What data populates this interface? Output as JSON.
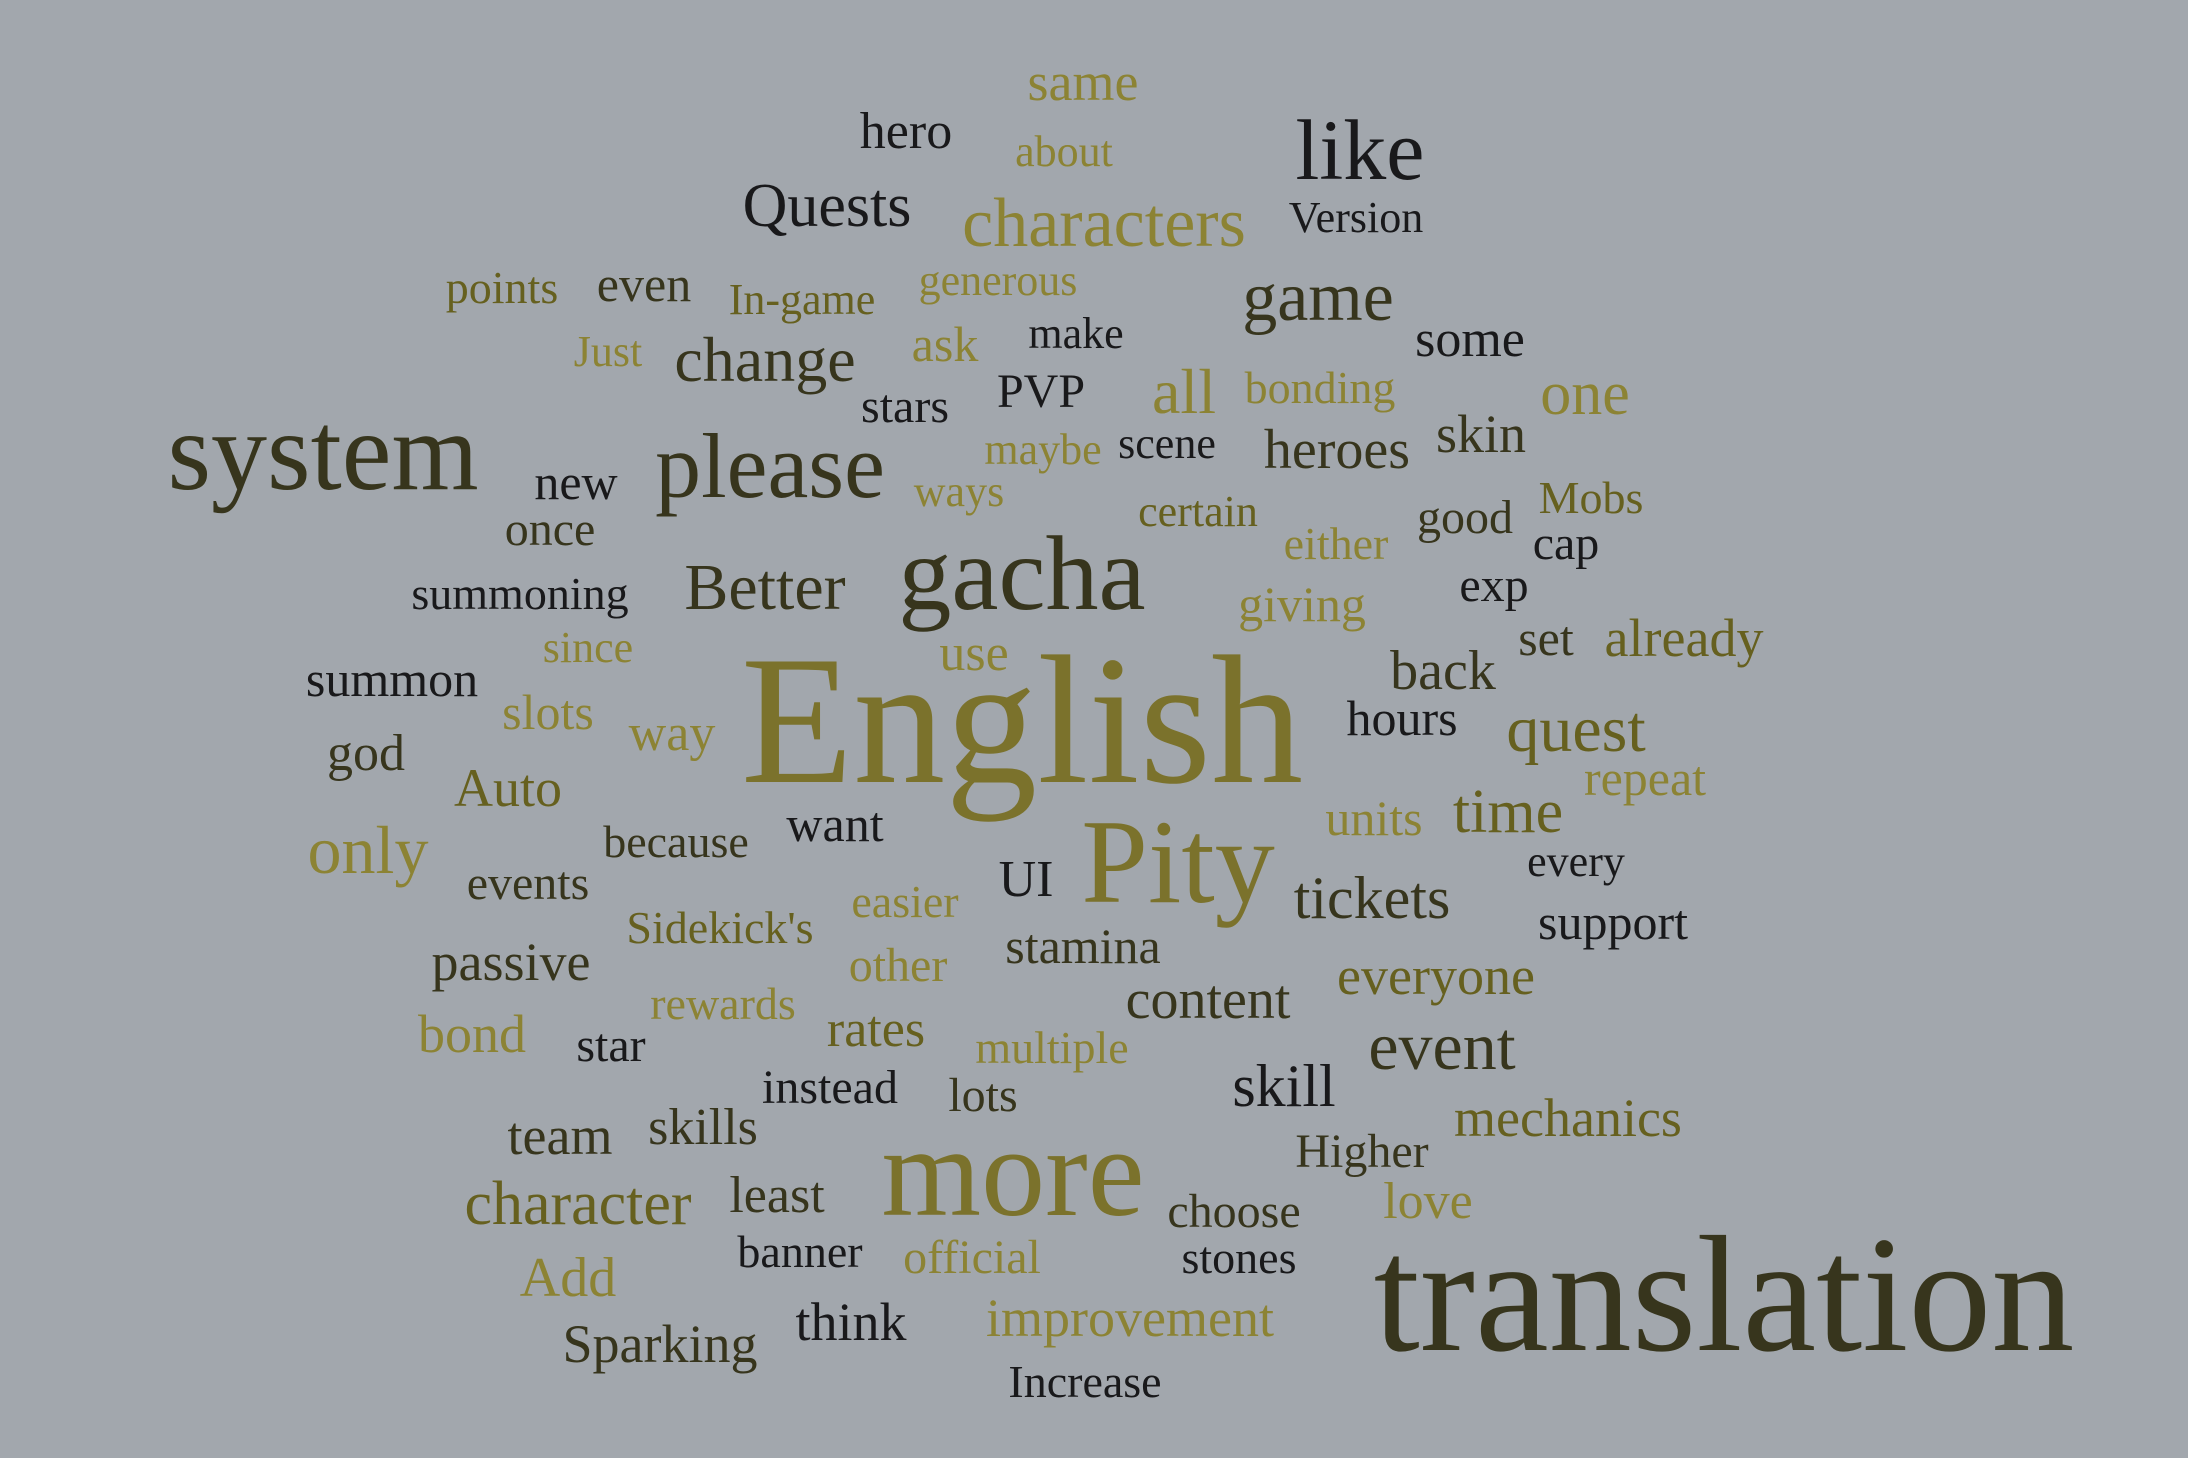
{
  "words": [
    {
      "text": "same",
      "color": "l"
    },
    {
      "text": "hero",
      "color": "k"
    },
    {
      "text": "about",
      "color": "l"
    },
    {
      "text": "like",
      "color": "k"
    },
    {
      "text": "Quests",
      "color": "k"
    },
    {
      "text": "characters",
      "color": "l"
    },
    {
      "text": "Version",
      "color": "k"
    },
    {
      "text": "points",
      "color": "m"
    },
    {
      "text": "even",
      "color": "d"
    },
    {
      "text": "In-game",
      "color": "m"
    },
    {
      "text": "generous",
      "color": "l"
    },
    {
      "text": "game",
      "color": "d"
    },
    {
      "text": "Just",
      "color": "l"
    },
    {
      "text": "change",
      "color": "d"
    },
    {
      "text": "ask",
      "color": "l"
    },
    {
      "text": "make",
      "color": "k"
    },
    {
      "text": "some",
      "color": "k"
    },
    {
      "text": "stars",
      "color": "k"
    },
    {
      "text": "PVP",
      "color": "k"
    },
    {
      "text": "all",
      "color": "l"
    },
    {
      "text": "bonding",
      "color": "l"
    },
    {
      "text": "one",
      "color": "l"
    },
    {
      "text": "system",
      "color": "d"
    },
    {
      "text": "please",
      "color": "d"
    },
    {
      "text": "new",
      "color": "k"
    },
    {
      "text": "maybe",
      "color": "l"
    },
    {
      "text": "scene",
      "color": "k"
    },
    {
      "text": "heroes",
      "color": "d"
    },
    {
      "text": "skin",
      "color": "d"
    },
    {
      "text": "ways",
      "color": "l"
    },
    {
      "text": "once",
      "color": "d"
    },
    {
      "text": "certain",
      "color": "m"
    },
    {
      "text": "Mobs",
      "color": "m"
    },
    {
      "text": "good",
      "color": "d"
    },
    {
      "text": "either",
      "color": "l"
    },
    {
      "text": "cap",
      "color": "k"
    },
    {
      "text": "summoning",
      "color": "k"
    },
    {
      "text": "Better",
      "color": "d"
    },
    {
      "text": "gacha",
      "color": "d"
    },
    {
      "text": "giving",
      "color": "l"
    },
    {
      "text": "exp",
      "color": "k"
    },
    {
      "text": "since",
      "color": "l"
    },
    {
      "text": "use",
      "color": "l"
    },
    {
      "text": "set",
      "color": "d"
    },
    {
      "text": "already",
      "color": "m"
    },
    {
      "text": "summon",
      "color": "k"
    },
    {
      "text": "back",
      "color": "d"
    },
    {
      "text": "slots",
      "color": "l"
    },
    {
      "text": "English",
      "color": "o"
    },
    {
      "text": "hours",
      "color": "k"
    },
    {
      "text": "quest",
      "color": "m"
    },
    {
      "text": "god",
      "color": "d"
    },
    {
      "text": "way",
      "color": "l"
    },
    {
      "text": "repeat",
      "color": "l"
    },
    {
      "text": "Auto",
      "color": "m"
    },
    {
      "text": "units",
      "color": "l"
    },
    {
      "text": "time",
      "color": "m"
    },
    {
      "text": "only",
      "color": "l"
    },
    {
      "text": "because",
      "color": "d"
    },
    {
      "text": "want",
      "color": "k"
    },
    {
      "text": "Pity",
      "color": "o"
    },
    {
      "text": "every",
      "color": "k"
    },
    {
      "text": "events",
      "color": "d"
    },
    {
      "text": "UI",
      "color": "k"
    },
    {
      "text": "easier",
      "color": "l"
    },
    {
      "text": "tickets",
      "color": "d"
    },
    {
      "text": "Sidekick's",
      "color": "m"
    },
    {
      "text": "support",
      "color": "k"
    },
    {
      "text": "passive",
      "color": "d"
    },
    {
      "text": "other",
      "color": "l"
    },
    {
      "text": "stamina",
      "color": "d"
    },
    {
      "text": "everyone",
      "color": "m"
    },
    {
      "text": "rewards",
      "color": "l"
    },
    {
      "text": "content",
      "color": "d"
    },
    {
      "text": "bond",
      "color": "l"
    },
    {
      "text": "rates",
      "color": "m"
    },
    {
      "text": "star",
      "color": "k"
    },
    {
      "text": "multiple",
      "color": "l"
    },
    {
      "text": "event",
      "color": "d"
    },
    {
      "text": "instead",
      "color": "k"
    },
    {
      "text": "lots",
      "color": "d"
    },
    {
      "text": "skill",
      "color": "k"
    },
    {
      "text": "mechanics",
      "color": "m"
    },
    {
      "text": "team",
      "color": "d"
    },
    {
      "text": "skills",
      "color": "d"
    },
    {
      "text": "more",
      "color": "o"
    },
    {
      "text": "Higher",
      "color": "d"
    },
    {
      "text": "character",
      "color": "m"
    },
    {
      "text": "least",
      "color": "d"
    },
    {
      "text": "choose",
      "color": "d"
    },
    {
      "text": "love",
      "color": "l"
    },
    {
      "text": "banner",
      "color": "k"
    },
    {
      "text": "official",
      "color": "l"
    },
    {
      "text": "stones",
      "color": "k"
    },
    {
      "text": "translation",
      "color": "d"
    },
    {
      "text": "Add",
      "color": "l"
    },
    {
      "text": "think",
      "color": "k"
    },
    {
      "text": "improvement",
      "color": "l"
    },
    {
      "text": "Sparking",
      "color": "d"
    },
    {
      "text": "Increase",
      "color": "k"
    }
  ]
}
